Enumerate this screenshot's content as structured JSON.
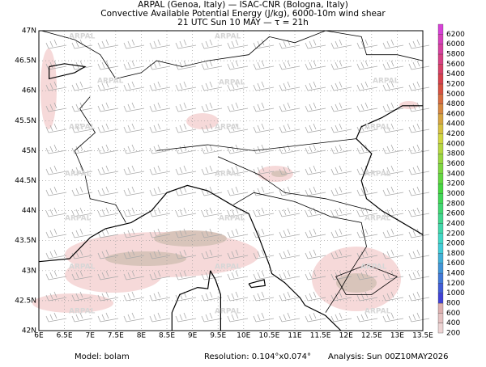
{
  "header": {
    "lines": [
      "ARPAL (Genoa, Italy)  —  ISAC-CNR (Bologna, Italy)",
      "Convective Available Potential Energy (J/kg), 6000-10m wind shear",
      "21 UTC Sun 10 MAY  —  τ = 21h"
    ]
  },
  "map": {
    "watermark": "ARPAL",
    "lon_ticks": [
      "6E",
      "6.5E",
      "7E",
      "7.5E",
      "8E",
      "8.5E",
      "9E",
      "9.5E",
      "10E",
      "10.5E",
      "11E",
      "11.5E",
      "12E",
      "12.5E",
      "13E",
      "13.5E"
    ],
    "lat_ticks": [
      "42N",
      "42.5N",
      "43N",
      "43.5N",
      "44N",
      "44.5N",
      "45N",
      "45.5N",
      "46N",
      "46.5N",
      "47N"
    ]
  },
  "colorbar": {
    "labels": [
      200,
      400,
      600,
      800,
      1000,
      1200,
      1400,
      1600,
      1800,
      2000,
      2200,
      2400,
      2600,
      2800,
      3000,
      3200,
      3400,
      3600,
      3800,
      4000,
      4200,
      4400,
      4600,
      4800,
      5000,
      5200,
      5400,
      5600,
      5800,
      6000,
      6200
    ]
  },
  "footer": {
    "model": "Model: bolam",
    "resolution": "Resolution: 0.104°x0.074°",
    "analysis": "Analysis: Sun 00Z10MAY2026"
  }
}
